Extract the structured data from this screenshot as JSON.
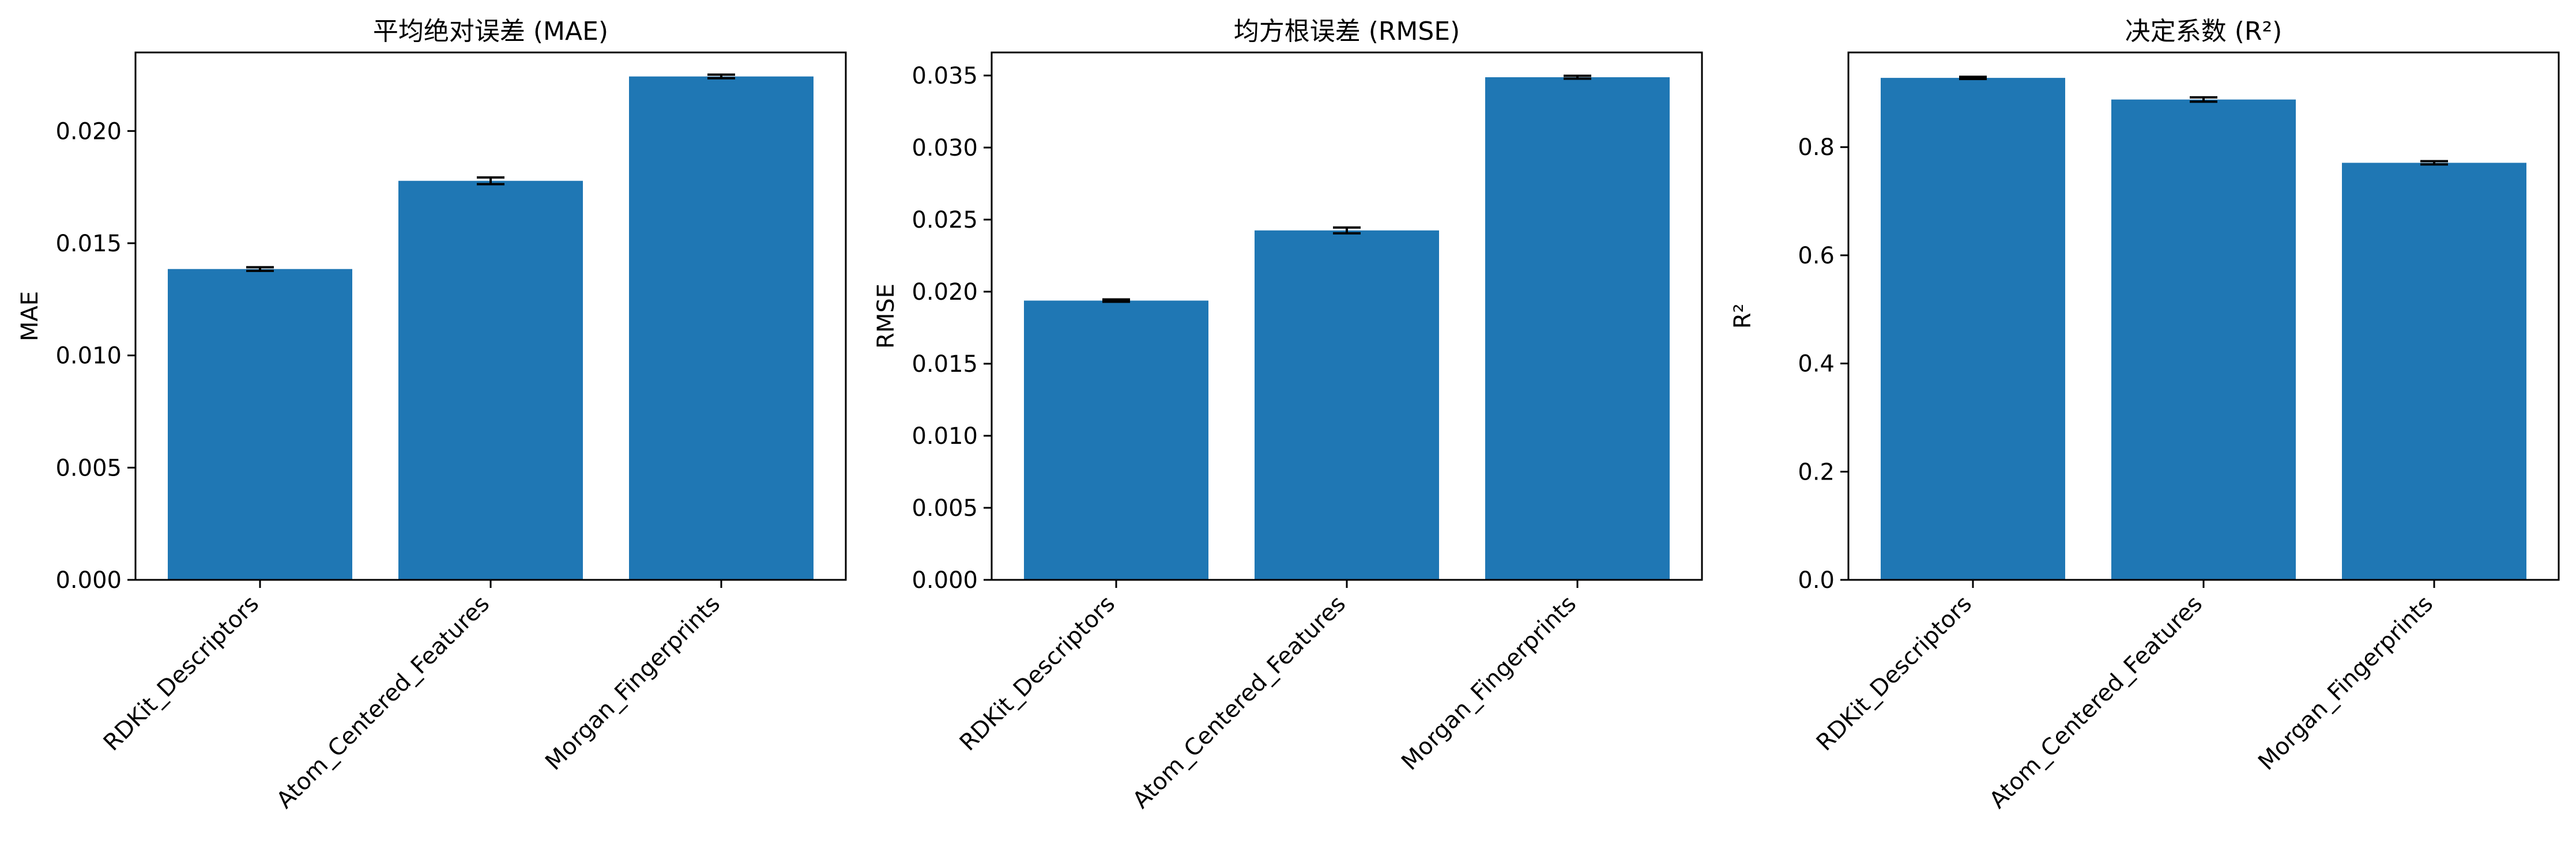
{
  "chart_data": [
    {
      "type": "bar",
      "title": "平均绝对误差 (MAE)",
      "ylabel": "MAE",
      "xlabel": "",
      "categories": [
        "RDKit_Descriptors",
        "Atom_Centered_Features",
        "Morgan_Fingerprints"
      ],
      "values": [
        0.01385,
        0.01778,
        0.02243
      ],
      "errors": [
        8e-05,
        0.00015,
        8e-05
      ],
      "ylim": [
        0,
        0.0235
      ],
      "yticks": [
        0.0,
        0.005,
        0.01,
        0.015,
        0.02
      ],
      "ytick_labels": [
        "0.000",
        "0.005",
        "0.010",
        "0.015",
        "0.020"
      ],
      "bar_color": "#1f77b4",
      "grid": false
    },
    {
      "type": "bar",
      "title": "均方根误差 (RMSE)",
      "ylabel": "RMSE",
      "xlabel": "",
      "categories": [
        "RDKit_Descriptors",
        "Atom_Centered_Features",
        "Morgan_Fingerprints"
      ],
      "values": [
        0.01938,
        0.02425,
        0.03488
      ],
      "errors": [
        8e-05,
        0.0002,
        0.0001
      ],
      "ylim": [
        0,
        0.0366
      ],
      "yticks": [
        0.0,
        0.005,
        0.01,
        0.015,
        0.02,
        0.025,
        0.03,
        0.035
      ],
      "ytick_labels": [
        "0.000",
        "0.005",
        "0.010",
        "0.015",
        "0.020",
        "0.025",
        "0.030",
        "0.035"
      ],
      "bar_color": "#1f77b4",
      "grid": false
    },
    {
      "type": "bar",
      "title": "决定系数 (R²)",
      "ylabel": "R²",
      "xlabel": "",
      "categories": [
        "RDKit_Descriptors",
        "Atom_Centered_Features",
        "Morgan_Fingerprints"
      ],
      "values": [
        0.928,
        0.888,
        0.771
      ],
      "errors": [
        0.002,
        0.004,
        0.003
      ],
      "ylim": [
        0,
        0.975
      ],
      "yticks": [
        0.0,
        0.2,
        0.4,
        0.6,
        0.8
      ],
      "ytick_labels": [
        "0.0",
        "0.2",
        "0.4",
        "0.6",
        "0.8"
      ],
      "bar_color": "#1f77b4",
      "grid": false
    }
  ]
}
